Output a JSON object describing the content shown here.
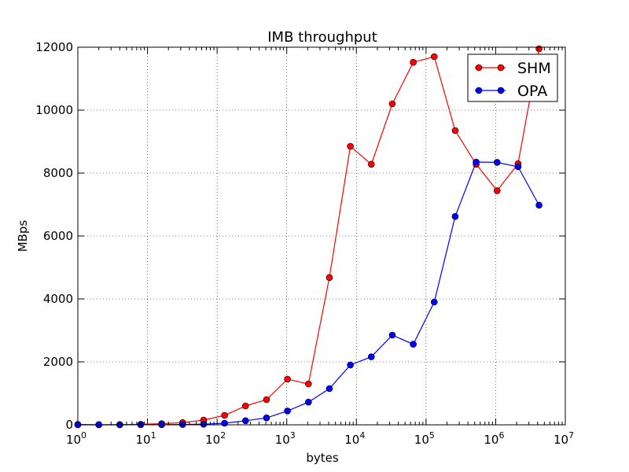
{
  "chart_data": {
    "type": "line",
    "title": "IMB throughput",
    "xlabel": "bytes",
    "ylabel": "MBps",
    "xscale": "log",
    "xlim": [
      1,
      10000000
    ],
    "ylim": [
      0,
      12000
    ],
    "grid": true,
    "legend_position": "top-right",
    "x_ticks": [
      {
        "value": 1,
        "base": "10",
        "exp": "0"
      },
      {
        "value": 10,
        "base": "10",
        "exp": "1"
      },
      {
        "value": 100,
        "base": "10",
        "exp": "2"
      },
      {
        "value": 1000,
        "base": "10",
        "exp": "3"
      },
      {
        "value": 10000,
        "base": "10",
        "exp": "4"
      },
      {
        "value": 100000,
        "base": "10",
        "exp": "5"
      },
      {
        "value": 1000000,
        "base": "10",
        "exp": "6"
      },
      {
        "value": 10000000,
        "base": "10",
        "exp": "7"
      }
    ],
    "y_ticks": [
      {
        "value": 0,
        "label": "0"
      },
      {
        "value": 2000,
        "label": "2000"
      },
      {
        "value": 4000,
        "label": "4000"
      },
      {
        "value": 6000,
        "label": "6000"
      },
      {
        "value": 8000,
        "label": "8000"
      },
      {
        "value": 10000,
        "label": "10000"
      },
      {
        "value": 12000,
        "label": "12000"
      }
    ],
    "x": [
      1,
      2,
      4,
      8,
      16,
      32,
      64,
      128,
      256,
      512,
      1024,
      2048,
      4096,
      8192,
      16384,
      32768,
      65536,
      131072,
      262144,
      524288,
      1048576,
      2097152,
      4194304
    ],
    "series": [
      {
        "name": "SHM",
        "color": "#ff0000",
        "values": [
          10,
          5,
          5,
          15,
          35,
          70,
          150,
          300,
          600,
          800,
          1450,
          1300,
          4680,
          8850,
          8280,
          10200,
          11520,
          11700,
          9350,
          8280,
          7440,
          8300,
          11950
        ]
      },
      {
        "name": "OPA",
        "color": "#0000ff",
        "values": [
          0,
          0,
          0,
          5,
          5,
          10,
          20,
          50,
          130,
          220,
          440,
          720,
          1150,
          1900,
          2160,
          2850,
          2560,
          3900,
          6620,
          8350,
          8340,
          8200,
          6980
        ]
      }
    ]
  }
}
